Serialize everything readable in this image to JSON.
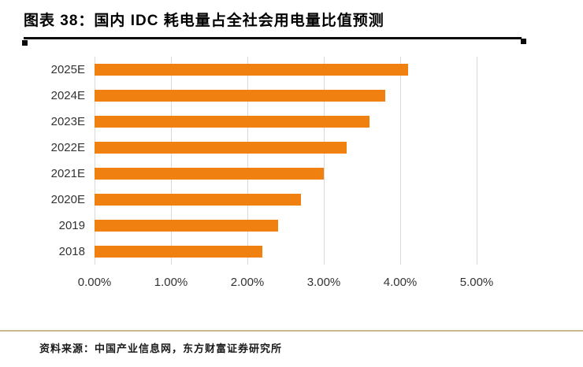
{
  "header": {
    "title": "图表 38：国内 IDC 耗电量占全社会用电量比值预测"
  },
  "chart_data": {
    "type": "bar",
    "orientation": "horizontal",
    "title": "图表 38：国内 IDC 耗电量占全社会用电量比值预测",
    "categories": [
      "2025E",
      "2024E",
      "2023E",
      "2022E",
      "2021E",
      "2020E",
      "2019",
      "2018"
    ],
    "values": [
      4.1,
      3.8,
      3.6,
      3.3,
      3.0,
      2.7,
      2.4,
      2.2
    ],
    "unit": "%",
    "xlim": [
      0,
      5
    ],
    "x_ticks": [
      "0.00%",
      "1.00%",
      "2.00%",
      "3.00%",
      "4.00%",
      "5.00%"
    ],
    "x_tick_values": [
      0,
      1,
      2,
      3,
      4,
      5
    ],
    "grid": "vertical",
    "legend": "none"
  },
  "colors": {
    "bar": "#F08111",
    "title_rule": "#0a0a0a",
    "gridline": "#d9d9d9",
    "footer_rule": "#c9b98e"
  },
  "footer": {
    "source": "资料来源：中国产业信息网，东方财富证券研究所"
  }
}
